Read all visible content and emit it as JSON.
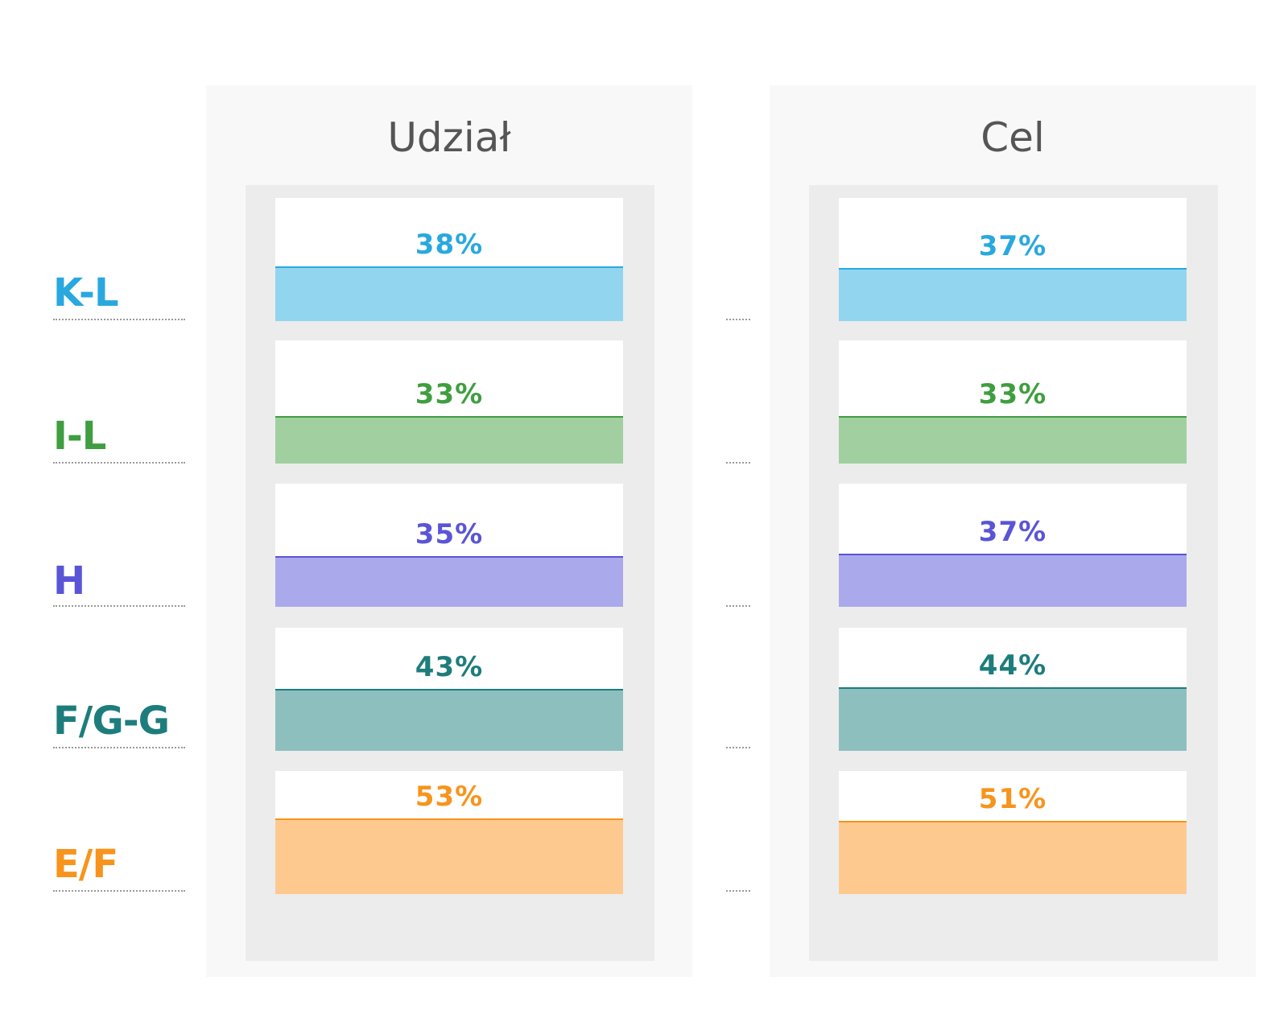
{
  "chart_data": {
    "type": "bar",
    "categories": [
      "K-L",
      "I-L",
      "H",
      "F/G-G",
      "E/F"
    ],
    "category_colors": [
      "#29a8e0",
      "#3f9e3f",
      "#5a55d6",
      "#1d7d7c",
      "#f7941d"
    ],
    "fill_colors": [
      "#92d5ef",
      "#a1cf9f",
      "#aaa9eb",
      "#8ebfbf",
      "#fec98f"
    ],
    "panel_colors": {
      "background": "#f8f8f8",
      "inner": "#ececec",
      "card": "#ffffff",
      "title": "#555555"
    },
    "unit": "%",
    "ylim": [
      0,
      100
    ],
    "series": [
      {
        "name": "Udział",
        "values": [
          38,
          33,
          35,
          43,
          53
        ]
      },
      {
        "name": "Cel",
        "values": [
          37,
          33,
          37,
          44,
          51
        ]
      }
    ]
  }
}
